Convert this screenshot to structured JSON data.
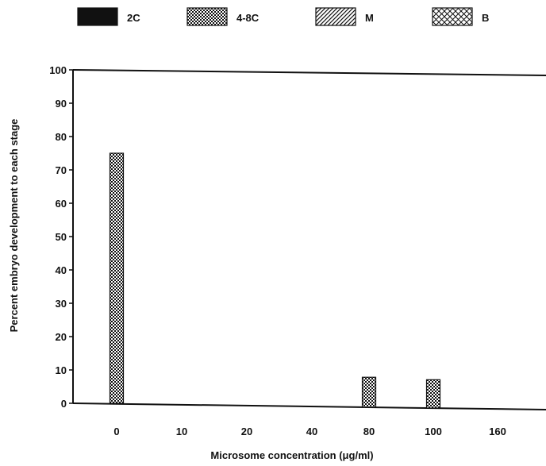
{
  "chart_data": {
    "type": "bar",
    "xlabel": "Microsome concentration (μg/ml)",
    "ylabel": "Percent embryo development to each stage",
    "ylim": [
      0,
      100
    ],
    "yticks": [
      "0",
      "10",
      "20",
      "30",
      "40",
      "50",
      "60",
      "70",
      "80",
      "90",
      "100"
    ],
    "categories": [
      "0",
      "10",
      "20",
      "40",
      "80",
      "100",
      "160"
    ],
    "series": [
      {
        "name": "2C",
        "pattern": "solid",
        "values": [
          0,
          0,
          0,
          0,
          0,
          0,
          0
        ]
      },
      {
        "name": "4-8C",
        "pattern": "dots",
        "values": [
          75,
          0,
          0,
          0,
          9,
          8.5,
          0
        ]
      },
      {
        "name": "M",
        "pattern": "diagonal",
        "values": [
          0,
          0,
          0,
          0,
          0,
          0,
          0
        ]
      },
      {
        "name": "B",
        "pattern": "crosshatch",
        "values": [
          0,
          0,
          0,
          0,
          0,
          0,
          0
        ]
      }
    ],
    "legend_position": "top",
    "grid": false
  }
}
